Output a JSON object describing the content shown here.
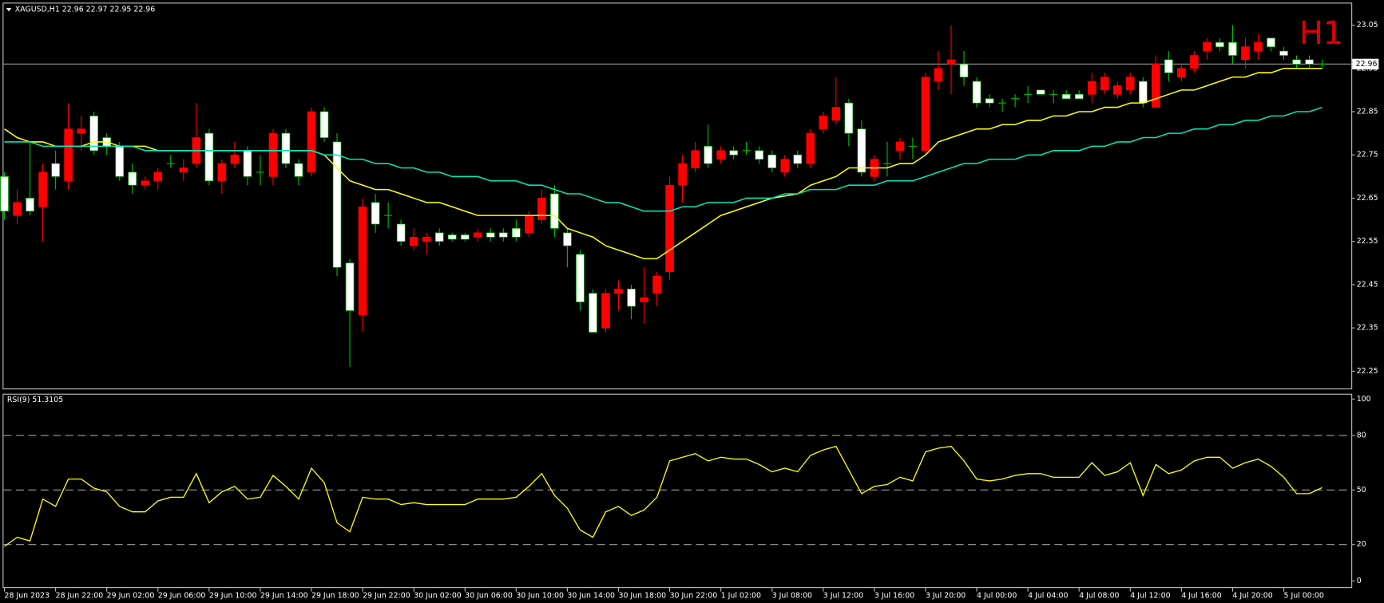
{
  "chart_data": [
    {
      "type": "candlestick",
      "title": "XAGUSD,H1  22.96 22.97 22.95 22.96",
      "annotation": "H1",
      "last_price": 22.96,
      "categories": [
        "28 Jun 2023",
        null,
        null,
        null,
        "28 Jun 22:00",
        null,
        null,
        null,
        "29 Jun 02:00",
        null,
        null,
        null,
        "29 Jun 06:00",
        null,
        null,
        null,
        "29 Jun 10:00",
        null,
        null,
        null,
        "29 Jun 14:00",
        null,
        null,
        null,
        "29 Jun 18:00",
        null,
        null,
        null,
        "29 Jun 22:00",
        null,
        null,
        null,
        "30 Jun 02:00",
        null,
        null,
        null,
        "30 Jun 06:00",
        null,
        null,
        null,
        "30 Jun 10:00",
        null,
        null,
        null,
        "30 Jun 14:00",
        null,
        null,
        null,
        "30 Jun 18:00",
        null,
        null,
        null,
        "30 Jun 22:00",
        null,
        null,
        null,
        "1 Jul 02:00",
        null,
        null,
        null,
        "3 Jul 08:00",
        null,
        null,
        null,
        "3 Jul 12:00",
        null,
        null,
        null,
        "3 Jul 16:00",
        null,
        null,
        null,
        "3 Jul 20:00",
        null,
        null,
        null,
        "4 Jul 00:00",
        null,
        null,
        null,
        "4 Jul 04:00",
        null,
        null,
        null,
        "4 Jul 08:00",
        null,
        null,
        null,
        "4 Jul 12:00",
        null,
        null,
        null,
        "4 Jul 16:00",
        null,
        null,
        null,
        "4 Jul 20:00",
        null,
        null,
        null,
        "5 Jul 00:00",
        null,
        null,
        null
      ],
      "open": [
        22.62,
        22.64,
        22.62,
        22.71,
        22.7,
        22.81,
        22.81,
        22.76,
        22.77,
        22.7,
        22.68,
        22.69,
        22.71,
        22.73,
        22.72,
        22.79,
        22.69,
        22.73,
        22.75,
        22.7,
        22.71,
        22.8,
        22.73,
        22.7,
        22.85,
        22.79,
        22.49,
        22.39,
        22.63,
        22.59,
        22.61,
        22.55,
        22.56,
        22.56,
        22.55,
        22.555,
        22.555,
        22.57,
        22.56,
        22.56,
        22.56,
        22.61,
        22.65,
        22.58,
        22.54,
        22.41,
        22.34,
        22.43,
        22.44,
        22.4,
        22.42,
        22.47,
        22.68,
        22.73,
        22.76,
        22.73,
        22.76,
        22.75,
        22.76,
        22.74,
        22.72,
        22.74,
        22.73,
        22.8,
        22.84,
        22.86,
        22.8,
        22.71,
        22.74,
        22.73,
        22.78,
        22.77,
        22.93,
        22.95,
        22.97,
        22.93,
        22.87,
        22.87,
        22.87,
        22.88,
        22.89,
        22.89,
        22.89,
        22.88,
        22.88,
        22.92,
        22.93,
        22.91,
        22.93,
        22.87,
        22.96,
        22.94,
        22.95,
        22.98,
        23.01,
        23.0,
        22.98,
        23.0,
        23.01,
        23.0,
        22.98,
        22.96,
        22.96,
        22.96
      ],
      "high": [
        22.71,
        22.67,
        22.78,
        22.73,
        22.76,
        22.87,
        22.84,
        22.85,
        22.8,
        22.78,
        22.73,
        22.7,
        22.72,
        22.75,
        22.74,
        22.87,
        22.81,
        22.74,
        22.78,
        22.77,
        22.75,
        22.81,
        22.81,
        22.74,
        22.86,
        22.86,
        22.8,
        22.51,
        22.65,
        22.66,
        22.64,
        22.6,
        22.58,
        22.57,
        22.58,
        22.57,
        22.57,
        22.58,
        22.58,
        22.58,
        22.6,
        22.62,
        22.67,
        22.68,
        22.58,
        22.53,
        22.44,
        22.44,
        22.46,
        22.45,
        22.49,
        22.48,
        22.7,
        22.75,
        22.78,
        22.82,
        22.77,
        22.77,
        22.78,
        22.77,
        22.76,
        22.75,
        22.76,
        22.81,
        22.85,
        22.93,
        22.88,
        22.83,
        22.75,
        22.78,
        22.79,
        22.79,
        22.94,
        22.99,
        23.05,
        22.99,
        22.93,
        22.89,
        22.88,
        22.89,
        22.91,
        22.9,
        22.9,
        22.9,
        22.9,
        22.94,
        22.94,
        22.92,
        22.94,
        22.93,
        22.98,
        22.99,
        22.96,
        22.99,
        23.02,
        23.02,
        23.05,
        23.02,
        23.03,
        23.02,
        23.0,
        22.98,
        22.98,
        22.97
      ],
      "low": [
        22.6,
        22.59,
        22.61,
        22.55,
        22.67,
        22.67,
        22.76,
        22.75,
        22.75,
        22.69,
        22.66,
        22.67,
        22.67,
        22.72,
        22.69,
        22.72,
        22.68,
        22.66,
        22.72,
        22.68,
        22.68,
        22.68,
        22.72,
        22.68,
        22.7,
        22.78,
        22.47,
        22.26,
        22.34,
        22.57,
        22.58,
        22.54,
        22.53,
        22.52,
        22.54,
        22.55,
        22.55,
        22.55,
        22.55,
        22.55,
        22.55,
        22.56,
        22.59,
        22.56,
        22.49,
        22.39,
        22.34,
        22.34,
        22.39,
        22.37,
        22.36,
        22.4,
        22.46,
        22.64,
        22.71,
        22.72,
        22.73,
        22.74,
        22.75,
        22.73,
        22.71,
        22.7,
        22.72,
        22.72,
        22.8,
        22.82,
        22.77,
        22.7,
        22.69,
        22.7,
        22.74,
        22.74,
        22.75,
        22.9,
        22.89,
        22.91,
        22.86,
        22.86,
        22.85,
        22.86,
        22.87,
        22.89,
        22.87,
        22.88,
        22.88,
        22.87,
        22.89,
        22.88,
        22.89,
        22.86,
        22.86,
        22.92,
        22.92,
        22.94,
        22.97,
        22.99,
        22.96,
        22.95,
        22.97,
        22.99,
        22.97,
        22.95,
        22.95,
        22.95
      ],
      "close": [
        22.7,
        22.61,
        22.65,
        22.63,
        22.73,
        22.69,
        22.8,
        22.84,
        22.79,
        22.77,
        22.71,
        22.68,
        22.69,
        22.73,
        22.71,
        22.73,
        22.8,
        22.69,
        22.73,
        22.76,
        22.71,
        22.7,
        22.8,
        22.73,
        22.71,
        22.85,
        22.78,
        22.5,
        22.38,
        22.64,
        22.61,
        22.59,
        22.54,
        22.55,
        22.57,
        22.565,
        22.565,
        22.56,
        22.57,
        22.57,
        22.58,
        22.57,
        22.6,
        22.66,
        22.57,
        22.52,
        22.43,
        22.35,
        22.43,
        22.44,
        22.41,
        22.43,
        22.48,
        22.68,
        22.72,
        22.77,
        22.74,
        22.76,
        22.76,
        22.76,
        22.75,
        22.71,
        22.75,
        22.73,
        22.81,
        22.83,
        22.87,
        22.81,
        22.7,
        22.73,
        22.76,
        22.77,
        22.76,
        22.92,
        22.96,
        22.96,
        22.92,
        22.88,
        22.87,
        22.88,
        22.89,
        22.9,
        22.89,
        22.89,
        22.89,
        22.89,
        22.9,
        22.89,
        22.9,
        22.92,
        22.86,
        22.97,
        22.93,
        22.95,
        22.99,
        23.01,
        23.01,
        22.97,
        22.99,
        23.02,
        22.99,
        22.97,
        22.97,
        22.96
      ],
      "series": [
        {
          "color": "#ffff00",
          "values": [
            22.81,
            22.79,
            22.78,
            22.78,
            22.77,
            22.77,
            22.77,
            22.78,
            22.78,
            22.77,
            22.77,
            22.77,
            22.76,
            22.76,
            22.76,
            22.76,
            22.76,
            22.76,
            22.76,
            22.76,
            22.76,
            22.76,
            22.76,
            22.76,
            22.76,
            22.75,
            22.72,
            22.69,
            22.68,
            22.67,
            22.67,
            22.66,
            22.65,
            22.64,
            22.64,
            22.63,
            22.62,
            22.61,
            22.61,
            22.61,
            22.61,
            22.61,
            22.61,
            22.61,
            22.58,
            22.57,
            22.56,
            22.54,
            22.53,
            22.52,
            22.51,
            22.51,
            22.53,
            22.55,
            22.57,
            22.59,
            22.61,
            22.62,
            22.63,
            22.64,
            22.65,
            22.655,
            22.66,
            22.68,
            22.69,
            22.7,
            22.72,
            22.72,
            22.72,
            22.72,
            22.73,
            22.73,
            22.75,
            22.78,
            22.79,
            22.8,
            22.81,
            22.81,
            22.82,
            22.82,
            22.83,
            22.83,
            22.84,
            22.84,
            22.85,
            22.85,
            22.86,
            22.86,
            22.87,
            22.87,
            22.88,
            22.89,
            22.9,
            22.9,
            22.91,
            22.92,
            22.93,
            22.93,
            22.94,
            22.94,
            22.95,
            22.95,
            22.95,
            22.95
          ]
        },
        {
          "color": "#00e6b8",
          "values": [
            22.78,
            22.78,
            22.78,
            22.77,
            22.77,
            22.77,
            22.77,
            22.77,
            22.77,
            22.77,
            22.77,
            22.76,
            22.76,
            22.76,
            22.76,
            22.76,
            22.76,
            22.76,
            22.76,
            22.76,
            22.76,
            22.76,
            22.76,
            22.76,
            22.76,
            22.75,
            22.75,
            22.74,
            22.74,
            22.73,
            22.73,
            22.72,
            22.72,
            22.71,
            22.71,
            22.7,
            22.7,
            22.7,
            22.69,
            22.69,
            22.69,
            22.68,
            22.68,
            22.67,
            22.66,
            22.66,
            22.65,
            22.64,
            22.64,
            22.63,
            22.62,
            22.62,
            22.62,
            22.63,
            22.63,
            22.64,
            22.64,
            22.64,
            22.65,
            22.65,
            22.65,
            22.66,
            22.66,
            22.67,
            22.67,
            22.67,
            22.68,
            22.68,
            22.68,
            22.69,
            22.69,
            22.69,
            22.7,
            22.71,
            22.72,
            22.73,
            22.73,
            22.74,
            22.74,
            22.74,
            22.75,
            22.75,
            22.76,
            22.76,
            22.76,
            22.77,
            22.77,
            22.78,
            22.78,
            22.79,
            22.79,
            22.8,
            22.8,
            22.81,
            22.81,
            22.82,
            22.82,
            22.83,
            22.83,
            22.84,
            22.84,
            22.85,
            22.85,
            22.86
          ]
        }
      ],
      "up_color": "#ffffff",
      "up_line_color": "#00c000",
      "down_color": "#ff0000",
      "annotation_color": "#e00000",
      "ylim": [
        22.21,
        23.1
      ],
      "yticks": [
        22.25,
        22.35,
        22.45,
        22.55,
        22.65,
        22.75,
        22.85,
        22.95,
        23.05
      ]
    },
    {
      "type": "line",
      "title": "RSI(9) 51.3105",
      "color": "#ffff00",
      "values": [
        19,
        24,
        22,
        45,
        41,
        56,
        56,
        51,
        49,
        41,
        38,
        38,
        44,
        46,
        46,
        59,
        43,
        49,
        52,
        45,
        46,
        58,
        52,
        45,
        62,
        54,
        32,
        27,
        46,
        45,
        45,
        42,
        43,
        42,
        42,
        42,
        42,
        45,
        45,
        45,
        46,
        52,
        59,
        47,
        40,
        28,
        24,
        38,
        41,
        36,
        39,
        46,
        66,
        68,
        70,
        66,
        68,
        67,
        67,
        64,
        60,
        62,
        60,
        69,
        72,
        74,
        61,
        48,
        52,
        53,
        57,
        55,
        71,
        73,
        74,
        66,
        56,
        55,
        56,
        58,
        59,
        59,
        57,
        57,
        57,
        65,
        58,
        60,
        65,
        47,
        64,
        59,
        61,
        66,
        68,
        68,
        62,
        65,
        67,
        63,
        57,
        48,
        48,
        51.3105
      ],
      "ylim": [
        0,
        100
      ],
      "yticks": [
        0,
        20,
        50,
        80,
        100
      ],
      "levels": [
        20,
        50,
        80
      ]
    }
  ]
}
